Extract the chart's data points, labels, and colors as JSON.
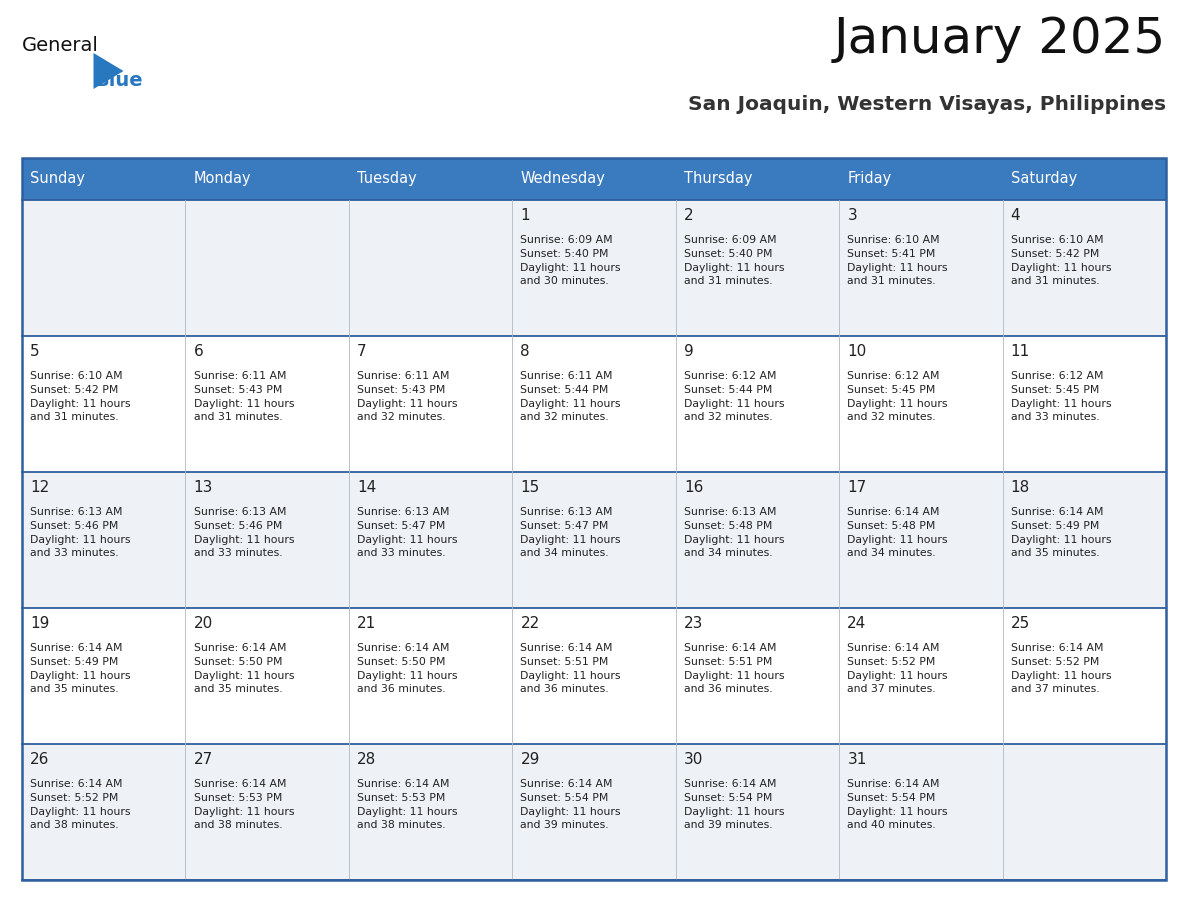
{
  "title": "January 2025",
  "subtitle": "San Joaquin, Western Visayas, Philippines",
  "header_bg": "#3a7abf",
  "header_text": "#ffffff",
  "row_bg_odd": "#eef2f7",
  "row_bg_even": "#ffffff",
  "cell_border_color": "#2e5f9e",
  "day_number_color": "#222222",
  "info_text_color": "#222222",
  "days_of_week": [
    "Sunday",
    "Monday",
    "Tuesday",
    "Wednesday",
    "Thursday",
    "Friday",
    "Saturday"
  ],
  "calendar": [
    [
      {
        "day": "",
        "sunrise": "",
        "sunset": "",
        "daylight": ""
      },
      {
        "day": "",
        "sunrise": "",
        "sunset": "",
        "daylight": ""
      },
      {
        "day": "",
        "sunrise": "",
        "sunset": "",
        "daylight": ""
      },
      {
        "day": "1",
        "sunrise": "6:09 AM",
        "sunset": "5:40 PM",
        "daylight": "11 hours and 30 minutes."
      },
      {
        "day": "2",
        "sunrise": "6:09 AM",
        "sunset": "5:40 PM",
        "daylight": "11 hours and 31 minutes."
      },
      {
        "day": "3",
        "sunrise": "6:10 AM",
        "sunset": "5:41 PM",
        "daylight": "11 hours and 31 minutes."
      },
      {
        "day": "4",
        "sunrise": "6:10 AM",
        "sunset": "5:42 PM",
        "daylight": "11 hours and 31 minutes."
      }
    ],
    [
      {
        "day": "5",
        "sunrise": "6:10 AM",
        "sunset": "5:42 PM",
        "daylight": "11 hours and 31 minutes."
      },
      {
        "day": "6",
        "sunrise": "6:11 AM",
        "sunset": "5:43 PM",
        "daylight": "11 hours and 31 minutes."
      },
      {
        "day": "7",
        "sunrise": "6:11 AM",
        "sunset": "5:43 PM",
        "daylight": "11 hours and 32 minutes."
      },
      {
        "day": "8",
        "sunrise": "6:11 AM",
        "sunset": "5:44 PM",
        "daylight": "11 hours and 32 minutes."
      },
      {
        "day": "9",
        "sunrise": "6:12 AM",
        "sunset": "5:44 PM",
        "daylight": "11 hours and 32 minutes."
      },
      {
        "day": "10",
        "sunrise": "6:12 AM",
        "sunset": "5:45 PM",
        "daylight": "11 hours and 32 minutes."
      },
      {
        "day": "11",
        "sunrise": "6:12 AM",
        "sunset": "5:45 PM",
        "daylight": "11 hours and 33 minutes."
      }
    ],
    [
      {
        "day": "12",
        "sunrise": "6:13 AM",
        "sunset": "5:46 PM",
        "daylight": "11 hours and 33 minutes."
      },
      {
        "day": "13",
        "sunrise": "6:13 AM",
        "sunset": "5:46 PM",
        "daylight": "11 hours and 33 minutes."
      },
      {
        "day": "14",
        "sunrise": "6:13 AM",
        "sunset": "5:47 PM",
        "daylight": "11 hours and 33 minutes."
      },
      {
        "day": "15",
        "sunrise": "6:13 AM",
        "sunset": "5:47 PM",
        "daylight": "11 hours and 34 minutes."
      },
      {
        "day": "16",
        "sunrise": "6:13 AM",
        "sunset": "5:48 PM",
        "daylight": "11 hours and 34 minutes."
      },
      {
        "day": "17",
        "sunrise": "6:14 AM",
        "sunset": "5:48 PM",
        "daylight": "11 hours and 34 minutes."
      },
      {
        "day": "18",
        "sunrise": "6:14 AM",
        "sunset": "5:49 PM",
        "daylight": "11 hours and 35 minutes."
      }
    ],
    [
      {
        "day": "19",
        "sunrise": "6:14 AM",
        "sunset": "5:49 PM",
        "daylight": "11 hours and 35 minutes."
      },
      {
        "day": "20",
        "sunrise": "6:14 AM",
        "sunset": "5:50 PM",
        "daylight": "11 hours and 35 minutes."
      },
      {
        "day": "21",
        "sunrise": "6:14 AM",
        "sunset": "5:50 PM",
        "daylight": "11 hours and 36 minutes."
      },
      {
        "day": "22",
        "sunrise": "6:14 AM",
        "sunset": "5:51 PM",
        "daylight": "11 hours and 36 minutes."
      },
      {
        "day": "23",
        "sunrise": "6:14 AM",
        "sunset": "5:51 PM",
        "daylight": "11 hours and 36 minutes."
      },
      {
        "day": "24",
        "sunrise": "6:14 AM",
        "sunset": "5:52 PM",
        "daylight": "11 hours and 37 minutes."
      },
      {
        "day": "25",
        "sunrise": "6:14 AM",
        "sunset": "5:52 PM",
        "daylight": "11 hours and 37 minutes."
      }
    ],
    [
      {
        "day": "26",
        "sunrise": "6:14 AM",
        "sunset": "5:52 PM",
        "daylight": "11 hours and 38 minutes."
      },
      {
        "day": "27",
        "sunrise": "6:14 AM",
        "sunset": "5:53 PM",
        "daylight": "11 hours and 38 minutes."
      },
      {
        "day": "28",
        "sunrise": "6:14 AM",
        "sunset": "5:53 PM",
        "daylight": "11 hours and 38 minutes."
      },
      {
        "day": "29",
        "sunrise": "6:14 AM",
        "sunset": "5:54 PM",
        "daylight": "11 hours and 39 minutes."
      },
      {
        "day": "30",
        "sunrise": "6:14 AM",
        "sunset": "5:54 PM",
        "daylight": "11 hours and 39 minutes."
      },
      {
        "day": "31",
        "sunrise": "6:14 AM",
        "sunset": "5:54 PM",
        "daylight": "11 hours and 40 minutes."
      },
      {
        "day": "",
        "sunrise": "",
        "sunset": "",
        "daylight": ""
      }
    ]
  ],
  "logo_general_color": "#111111",
  "logo_blue_color": "#2878c0",
  "title_color": "#111111",
  "subtitle_color": "#333333",
  "fig_width": 11.88,
  "fig_height": 9.18,
  "dpi": 100
}
